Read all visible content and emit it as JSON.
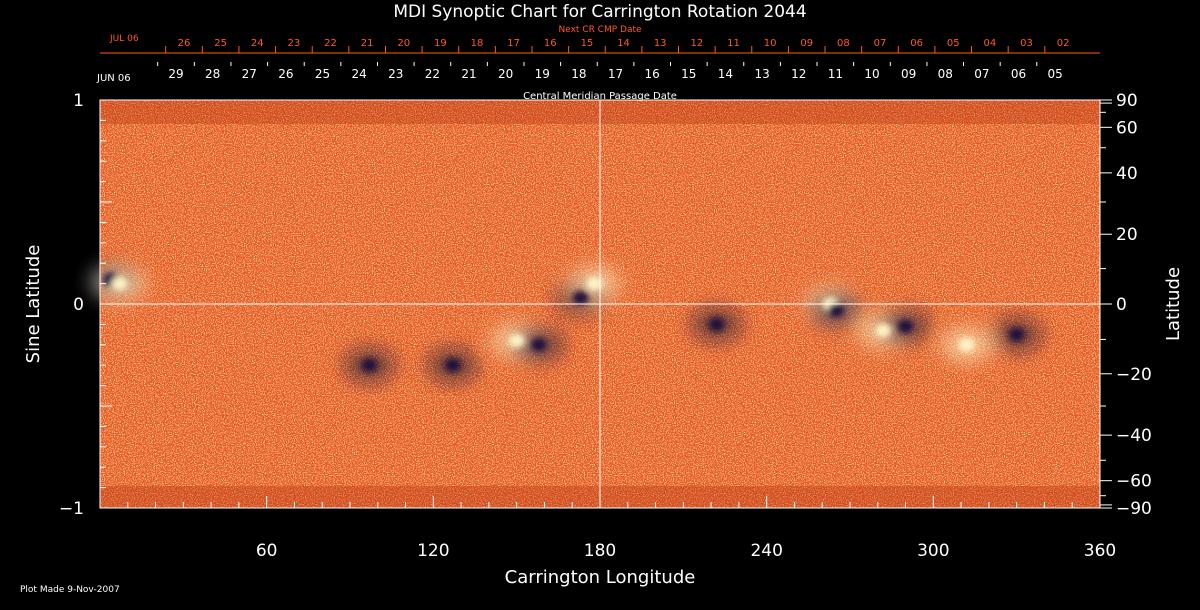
{
  "chart_data": {
    "type": "heatmap",
    "title": "MDI Synoptic Chart for Carrington Rotation 2044",
    "xlabel": "Carrington Longitude",
    "ylabel": "Sine Latitude",
    "y2label": "Latitude",
    "xlim": [
      0,
      360
    ],
    "ylim": [
      -1,
      1
    ],
    "x_ticks": [
      60,
      120,
      180,
      240,
      300,
      360
    ],
    "y_ticks": [
      {
        "value": 1,
        "label": "1"
      },
      {
        "value": 0,
        "label": "0"
      },
      {
        "value": -1,
        "label": "−1"
      }
    ],
    "latitude_ticks": [
      {
        "value": 90,
        "label": "90"
      },
      {
        "value": 60,
        "label": "60"
      },
      {
        "value": 40,
        "label": "40"
      },
      {
        "value": 20,
        "label": "20"
      },
      {
        "value": 0,
        "label": "0"
      },
      {
        "value": -20,
        "label": "−20"
      },
      {
        "value": -40,
        "label": "−40"
      },
      {
        "value": -60,
        "label": "−60"
      },
      {
        "value": -90,
        "label": "−90"
      }
    ],
    "grid_lines": {
      "longitude": 180,
      "sine_latitude": 0
    },
    "colors": {
      "background_field": "#e8531a",
      "positive_polarity": "#fff6c8",
      "negative_polarity": "#1a0f3a",
      "next_cr_axis": "#ff5a1f",
      "axis": "#ffffff"
    },
    "active_regions": [
      {
        "lon": 4,
        "sinlat": 0.12,
        "polarity": "negative"
      },
      {
        "lon": 7,
        "sinlat": 0.1,
        "polarity": "positive"
      },
      {
        "lon": 97,
        "sinlat": -0.3,
        "polarity": "negative"
      },
      {
        "lon": 127,
        "sinlat": -0.3,
        "polarity": "negative"
      },
      {
        "lon": 150,
        "sinlat": -0.18,
        "polarity": "positive"
      },
      {
        "lon": 158,
        "sinlat": -0.2,
        "polarity": "negative"
      },
      {
        "lon": 173,
        "sinlat": 0.03,
        "polarity": "negative"
      },
      {
        "lon": 178,
        "sinlat": 0.1,
        "polarity": "positive"
      },
      {
        "lon": 222,
        "sinlat": -0.1,
        "polarity": "negative"
      },
      {
        "lon": 263,
        "sinlat": 0,
        "polarity": "positive"
      },
      {
        "lon": 265,
        "sinlat": -0.03,
        "polarity": "negative"
      },
      {
        "lon": 282,
        "sinlat": -0.13,
        "polarity": "positive"
      },
      {
        "lon": 290,
        "sinlat": -0.11,
        "polarity": "negative"
      },
      {
        "lon": 312,
        "sinlat": -0.2,
        "polarity": "positive"
      },
      {
        "lon": 330,
        "sinlat": -0.15,
        "polarity": "negative"
      }
    ],
    "cmp_dates": {
      "label": "Central Meridian Passage Date",
      "start_label": "JUN 06",
      "days": [
        "29",
        "28",
        "27",
        "26",
        "25",
        "24",
        "23",
        "22",
        "21",
        "20",
        "19",
        "18",
        "17",
        "16",
        "15",
        "14",
        "13",
        "12",
        "11",
        "10",
        "09",
        "08",
        "07",
        "06",
        "05"
      ]
    },
    "next_cr_dates": {
      "label": "Next CR CMP Date",
      "start_label": "JUL 06",
      "days": [
        "26",
        "25",
        "24",
        "23",
        "22",
        "21",
        "20",
        "19",
        "18",
        "17",
        "16",
        "15",
        "14",
        "13",
        "12",
        "11",
        "10",
        "09",
        "08",
        "07",
        "06",
        "05",
        "04",
        "03",
        "02"
      ]
    }
  },
  "footer": {
    "plot_made": "Plot Made  9-Nov-2007"
  }
}
